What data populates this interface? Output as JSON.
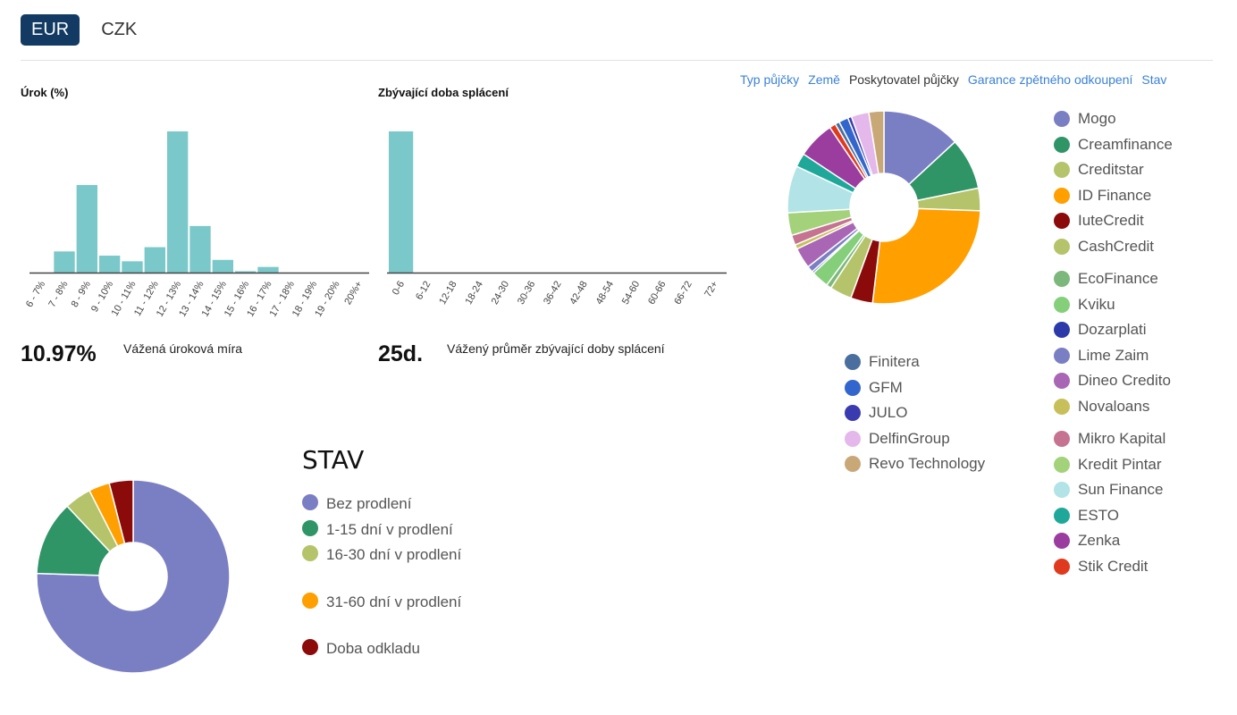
{
  "currency_tabs": [
    {
      "label": "EUR",
      "active": true
    },
    {
      "label": "CZK",
      "active": false
    }
  ],
  "interest": {
    "title": "Úrok (%)",
    "value": "10.97%",
    "caption": "Vážená úroková míra"
  },
  "term": {
    "title": "Zbývající doba splácení",
    "value": "25d.",
    "caption": "Vážený průměr zbývající doby splácení"
  },
  "provider_tabs": [
    {
      "label": "Typ půjčky",
      "active": false
    },
    {
      "label": "Země",
      "active": false
    },
    {
      "label": "Poskytovatel půjčky",
      "active": true
    },
    {
      "label": "Garance zpětného odkoupení",
      "active": false
    },
    {
      "label": "Stav",
      "active": false
    }
  ],
  "stav_title": "STAV",
  "chart_data": [
    {
      "type": "bar",
      "title": "Úrok (%)",
      "categories": [
        "6 - 7%",
        "7 - 8%",
        "8 - 9%",
        "9 - 10%",
        "10 - 11%",
        "11 - 12%",
        "12 - 13%",
        "13 - 14%",
        "14 - 15%",
        "15 - 16%",
        "16 - 17%",
        "17 - 18%",
        "18 - 19%",
        "19 - 20%",
        "20%+"
      ],
      "values": [
        0,
        15,
        62,
        12,
        8,
        18,
        100,
        33,
        9,
        1,
        4,
        0,
        0,
        0,
        0
      ],
      "ylim": [
        0,
        100
      ],
      "color": "#7ac8c9"
    },
    {
      "type": "bar",
      "title": "Zbývající doba splácení",
      "categories": [
        "0-6",
        "6-12",
        "12-18",
        "18-24",
        "24-30",
        "30-36",
        "36-42",
        "42-48",
        "48-54",
        "54-60",
        "60-66",
        "66-72",
        "72+"
      ],
      "values": [
        100,
        0,
        0,
        0,
        0,
        0,
        0,
        0,
        0,
        0,
        0,
        0,
        0
      ],
      "ylim": [
        0,
        100
      ],
      "color": "#7ac8c9"
    },
    {
      "type": "pie",
      "title": "Poskytovatel půjčky",
      "slices": [
        {
          "name": "Mogo",
          "value": 12.5,
          "color": "#7a7fc4"
        },
        {
          "name": "Creamfinance",
          "value": 8.2,
          "color": "#2f9466"
        },
        {
          "name": "Creditstar",
          "value": 3.6,
          "color": "#b5c46a"
        },
        {
          "name": "ID Finance",
          "value": 25.0,
          "color": "#ff9f00"
        },
        {
          "name": "IuteCredit",
          "value": 3.5,
          "color": "#8b0a0a"
        },
        {
          "name": "CashCredit",
          "value": 3.5,
          "color": "#b5c46a"
        },
        {
          "name": "EcoFinance",
          "value": 0.8,
          "color": "#7cb87c"
        },
        {
          "name": "Kviku",
          "value": 2.8,
          "color": "#85cf7a"
        },
        {
          "name": "Dozarplati",
          "value": 0.3,
          "color": "#2b3aa8"
        },
        {
          "name": "Lime Zaim",
          "value": 1.0,
          "color": "#7a7fc4"
        },
        {
          "name": "Dineo Credito",
          "value": 3.3,
          "color": "#a966b5"
        },
        {
          "name": "Novaloans",
          "value": 0.7,
          "color": "#c7c05a"
        },
        {
          "name": "Mikro Kapital",
          "value": 1.6,
          "color": "#c57390"
        },
        {
          "name": "Kredit Pintar",
          "value": 3.6,
          "color": "#a3d27a"
        },
        {
          "name": "Sun Finance",
          "value": 7.5,
          "color": "#b2e3e6"
        },
        {
          "name": "ESTO",
          "value": 2.2,
          "color": "#1fa89a"
        },
        {
          "name": "Zenka",
          "value": 5.9,
          "color": "#9a3d9e"
        },
        {
          "name": "Stik Credit",
          "value": 1.0,
          "color": "#e03a1e"
        },
        {
          "name": "Finitera",
          "value": 0.7,
          "color": "#4a6f9e"
        },
        {
          "name": "GFM",
          "value": 1.5,
          "color": "#3366cc"
        },
        {
          "name": "JULO",
          "value": 0.6,
          "color": "#3b3bb0"
        },
        {
          "name": "DelfinGroup",
          "value": 2.8,
          "color": "#e4b8ea"
        },
        {
          "name": "Revo Technology",
          "value": 2.4,
          "color": "#c9a878"
        }
      ]
    },
    {
      "type": "pie",
      "title": "STAV",
      "slices": [
        {
          "name": "Bez prodlení",
          "value": 75.5,
          "color": "#7a7fc4"
        },
        {
          "name": "1-15 dní v prodlení",
          "value": 12.5,
          "color": "#2f9466"
        },
        {
          "name": "16-30 dní v prodlení",
          "value": 4.5,
          "color": "#b5c46a"
        },
        {
          "name": "31-60 dní v prodlení",
          "value": 3.5,
          "color": "#ff9f00"
        },
        {
          "name": "Doba odkladu",
          "value": 4.0,
          "color": "#8b0a0a"
        }
      ]
    }
  ]
}
